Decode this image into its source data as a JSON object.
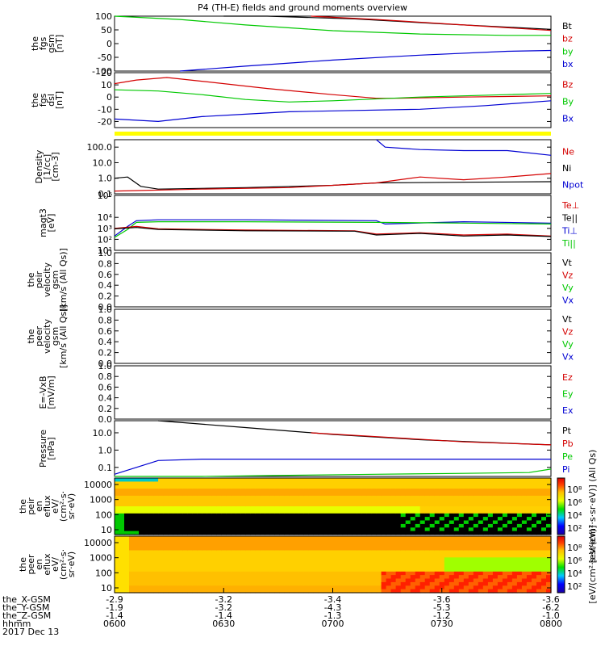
{
  "title": "P4 (TH-E) fields and ground moments overview",
  "colors": {
    "black": "#000000",
    "red": "#d40000",
    "green": "#00c800",
    "blue": "#0000d2",
    "yellow": "#ffff00"
  },
  "chart_data": [
    {
      "type": "line",
      "id": "fgs_gsm",
      "ylabel": [
        "the",
        "fgs",
        "gsm",
        "[nT]"
      ],
      "ylim": [
        -100,
        100
      ],
      "yticks": [
        100,
        50,
        0,
        -50,
        -100
      ],
      "legend": [
        {
          "name": "Bt",
          "color": "black"
        },
        {
          "name": "bz",
          "color": "red"
        },
        {
          "name": "by",
          "color": "green"
        },
        {
          "name": "bx",
          "color": "blue"
        }
      ],
      "series": [
        {
          "name": "Bt",
          "color": "black",
          "x": [
            0.25,
            0.35,
            0.55,
            0.75,
            1.0
          ],
          "y": [
            100,
            100,
            90,
            72,
            52
          ]
        },
        {
          "name": "bz",
          "color": "red",
          "x": [
            0.45,
            0.6,
            0.8,
            1.0
          ],
          "y": [
            100,
            88,
            68,
            48
          ]
        },
        {
          "name": "by",
          "color": "green",
          "x": [
            0,
            0.15,
            0.3,
            0.5,
            0.7,
            0.9,
            1.0
          ],
          "y": [
            100,
            88,
            68,
            47,
            35,
            30,
            30
          ]
        },
        {
          "name": "bx",
          "color": "blue",
          "x": [
            0.15,
            0.3,
            0.5,
            0.7,
            0.9,
            1.0
          ],
          "y": [
            -100,
            -82,
            -60,
            -42,
            -28,
            -25
          ]
        }
      ]
    },
    {
      "type": "line",
      "id": "fgs_dsl",
      "ylabel": [
        "the",
        "fgs",
        "dsl",
        "[nT]"
      ],
      "ylim": [
        -25,
        20
      ],
      "yticks": [
        20,
        10,
        0,
        -10,
        -20
      ],
      "legend": [
        {
          "name": "Bz",
          "color": "red"
        },
        {
          "name": "By",
          "color": "green"
        },
        {
          "name": "Bx",
          "color": "blue"
        }
      ],
      "series": [
        {
          "name": "Bz",
          "color": "red",
          "x": [
            0,
            0.05,
            0.12,
            0.2,
            0.35,
            0.5,
            0.6,
            0.65,
            0.8,
            1.0
          ],
          "y": [
            11,
            14,
            16,
            13,
            7,
            2,
            -1,
            -1,
            0,
            1
          ]
        },
        {
          "name": "By",
          "color": "green",
          "x": [
            0,
            0.1,
            0.2,
            0.3,
            0.4,
            0.5,
            0.7,
            0.9,
            1.0
          ],
          "y": [
            6,
            5,
            2,
            -2,
            -4,
            -3,
            0,
            2,
            3
          ]
        },
        {
          "name": "Bx",
          "color": "blue",
          "x": [
            0,
            0.1,
            0.2,
            0.3,
            0.4,
            0.55,
            0.7,
            0.85,
            1.0
          ],
          "y": [
            -18,
            -20,
            -16,
            -14,
            -12,
            -11,
            -10,
            -7,
            -3
          ]
        }
      ]
    },
    {
      "type": "line",
      "id": "density",
      "ylog": true,
      "ylabel": [
        "Density",
        "[1/cc]",
        "[cm-3]"
      ],
      "ylim": [
        0.1,
        300
      ],
      "yticks": [
        {
          "v": 100,
          "t": "100.0"
        },
        {
          "v": 10,
          "t": "10.0"
        },
        {
          "v": 1,
          "t": "1.0"
        },
        {
          "v": 0.1,
          "t": "0.1"
        }
      ],
      "legend": [
        {
          "name": "Ne",
          "color": "red"
        },
        {
          "name": "Ni",
          "color": "black"
        },
        {
          "name": "Npot",
          "color": "blue"
        }
      ],
      "series": [
        {
          "name": "Ni",
          "color": "black",
          "x": [
            0,
            0.03,
            0.06,
            0.1,
            0.3,
            0.5,
            0.6,
            0.8,
            1.0
          ],
          "y": [
            1.0,
            1.2,
            0.3,
            0.2,
            0.25,
            0.35,
            0.5,
            0.55,
            0.6
          ]
        },
        {
          "name": "Ne",
          "color": "red",
          "x": [
            0,
            0.2,
            0.4,
            0.5,
            0.6,
            0.7,
            0.8,
            0.9,
            1.0
          ],
          "y": [
            0.15,
            0.2,
            0.25,
            0.35,
            0.5,
            1.2,
            0.8,
            1.2,
            2.0
          ]
        },
        {
          "name": "Npot",
          "color": "blue",
          "x": [
            0.6,
            0.62,
            0.7,
            0.8,
            0.9,
            1.0
          ],
          "y": [
            300,
            100,
            70,
            60,
            60,
            30
          ]
        }
      ]
    },
    {
      "type": "line",
      "id": "temperature",
      "ylog": true,
      "ylabel": [
        "magt3",
        "[eV]"
      ],
      "ylim": [
        10,
        1000000
      ],
      "yticks": [
        {
          "v": 1000000,
          "t": "10⁶"
        },
        {
          "v": 10000,
          "t": "10⁴"
        },
        {
          "v": 1000,
          "t": "10³"
        },
        {
          "v": 100,
          "t": "10²"
        },
        {
          "v": 10,
          "t": "10¹"
        }
      ],
      "legend": [
        {
          "name": "Te⊥",
          "color": "red"
        },
        {
          "name": "Te||",
          "color": "black"
        },
        {
          "name": "Ti⊥",
          "color": "blue"
        },
        {
          "name": "Ti||",
          "color": "green"
        }
      ],
      "series": [
        {
          "name": "Ti⊥",
          "color": "blue",
          "x": [
            0,
            0.03,
            0.05,
            0.1,
            0.3,
            0.6,
            0.62,
            0.8,
            1.0
          ],
          "y": [
            200,
            1500,
            5000,
            6000,
            6000,
            5000,
            2500,
            4000,
            3000
          ]
        },
        {
          "name": "Ti||",
          "color": "green",
          "x": [
            0,
            0.03,
            0.05,
            0.1,
            0.3,
            0.6,
            0.8,
            1.0
          ],
          "y": [
            150,
            800,
            3500,
            4000,
            4000,
            3500,
            3000,
            2500
          ]
        },
        {
          "name": "Te⊥",
          "color": "red",
          "x": [
            0,
            0.05,
            0.1,
            0.3,
            0.55,
            0.6,
            0.7,
            0.8,
            0.9,
            1.0
          ],
          "y": [
            1000,
            1500,
            900,
            700,
            600,
            300,
            400,
            250,
            300,
            200
          ]
        },
        {
          "name": "Te||",
          "color": "black",
          "x": [
            0,
            0.05,
            0.1,
            0.3,
            0.55,
            0.6,
            0.7,
            0.8,
            0.9,
            1.0
          ],
          "y": [
            900,
            1200,
            800,
            600,
            550,
            250,
            350,
            200,
            250,
            180
          ]
        }
      ]
    },
    {
      "type": "line",
      "id": "peir_velocity",
      "ylabel": [
        "the",
        "peir",
        "velocity",
        "gsm",
        "[km/s (All Qs)]"
      ],
      "ylim": [
        0,
        1
      ],
      "yticks": [
        "1.0",
        "0.8",
        "0.6",
        "0.4",
        "0.2",
        "0.0"
      ],
      "legend": [
        {
          "name": "Vt",
          "color": "black"
        },
        {
          "name": "Vz",
          "color": "red"
        },
        {
          "name": "Vy",
          "color": "green"
        },
        {
          "name": "Vx",
          "color": "blue"
        }
      ],
      "series": []
    },
    {
      "type": "line",
      "id": "peer_velocity",
      "ylabel": [
        "the",
        "peer",
        "velocity",
        "gsm",
        "[km/s (All Qs)]"
      ],
      "ylim": [
        0,
        1
      ],
      "yticks": [
        "1.0",
        "0.8",
        "0.6",
        "0.4",
        "0.2",
        "0.0"
      ],
      "legend": [
        {
          "name": "Vt",
          "color": "black"
        },
        {
          "name": "Vz",
          "color": "red"
        },
        {
          "name": "Vy",
          "color": "green"
        },
        {
          "name": "Vx",
          "color": "blue"
        }
      ],
      "series": []
    },
    {
      "type": "line",
      "id": "efield",
      "ylabel": [
        "E=-VxB",
        "[mV/m]"
      ],
      "ylim": [
        0,
        1
      ],
      "yticks": [
        "1.0",
        "0.8",
        "0.6",
        "0.4",
        "0.2",
        "0.0"
      ],
      "legend": [
        {
          "name": "Ez",
          "color": "red"
        },
        {
          "name": "Ey",
          "color": "green"
        },
        {
          "name": "Ex",
          "color": "blue"
        }
      ],
      "series": []
    },
    {
      "type": "line",
      "id": "pressure",
      "ylog": true,
      "ylabel": [
        "Pressure",
        "[nPa]"
      ],
      "ylim": [
        0.03,
        50
      ],
      "yticks": [
        {
          "v": 10,
          "t": "10.0"
        },
        {
          "v": 1,
          "t": "1.0"
        },
        {
          "v": 0.1,
          "t": "0.1"
        }
      ],
      "legend": [
        {
          "name": "Pt",
          "color": "black"
        },
        {
          "name": "Pb",
          "color": "red"
        },
        {
          "name": "Pe",
          "color": "green"
        },
        {
          "name": "Pi",
          "color": "blue"
        }
      ],
      "series": [
        {
          "name": "Pt",
          "color": "black",
          "x": [
            0.1,
            0.3,
            0.5,
            0.7,
            0.9,
            1.0
          ],
          "y": [
            50,
            20,
            8,
            4,
            2.5,
            2
          ]
        },
        {
          "name": "Pb",
          "color": "red",
          "x": [
            0.45,
            0.6,
            0.8,
            1.0
          ],
          "y": [
            10,
            6,
            3,
            2
          ]
        },
        {
          "name": "Pi",
          "color": "blue",
          "x": [
            0,
            0.05,
            0.1,
            0.2,
            0.4,
            0.6,
            0.8,
            1.0
          ],
          "y": [
            0.04,
            0.1,
            0.25,
            0.3,
            0.3,
            0.3,
            0.3,
            0.3
          ]
        },
        {
          "name": "Pe",
          "color": "green",
          "x": [
            0,
            0.2,
            0.4,
            0.6,
            0.8,
            0.95,
            1.0
          ],
          "y": [
            0.03,
            0.03,
            0.035,
            0.04,
            0.045,
            0.05,
            0.08
          ]
        }
      ]
    },
    {
      "type": "heatmap",
      "id": "peir_eflux",
      "ylabel": [
        "the",
        "peir",
        "en",
        "eflux",
        "eV/",
        "(cm²·s·",
        "sr·eV)"
      ],
      "ylog": true,
      "ylim": [
        6,
        20000
      ],
      "yticks": [
        "10000",
        "1000",
        "100",
        "10"
      ],
      "colorbar": {
        "ticks": [
          "10⁸",
          "10⁶",
          "10⁴",
          "10²"
        ],
        "label": "[eV/(cm²·s·sr·eV)] (All Qs)"
      }
    },
    {
      "type": "heatmap",
      "id": "peer_eflux",
      "ylabel": [
        "the",
        "peer",
        "en",
        "eflux",
        "eV/",
        "(cm²·s·",
        "sr·eV)"
      ],
      "ylog": true,
      "ylim": [
        6,
        20000
      ],
      "yticks": [
        "10000",
        "1000",
        "100",
        "10"
      ],
      "colorbar": {
        "ticks": [
          "10⁸",
          "10⁶",
          "10⁴",
          "10²"
        ],
        "label": "[eV/(cm²·s·sr·eV)]"
      }
    }
  ],
  "xaxis": {
    "rows": [
      {
        "label": "the_X-GSM",
        "values": [
          "-2.9",
          "-3.2",
          "-3.4",
          "-3.6",
          "-3.6"
        ]
      },
      {
        "label": "the_Y-GSM",
        "values": [
          "-1.9",
          "-3.2",
          "-4.3",
          "-5.3",
          "-6.2"
        ]
      },
      {
        "label": "the_Z-GSM",
        "values": [
          "-1.4",
          "-1.4",
          "-1.3",
          "-1.2",
          "-1.0"
        ]
      },
      {
        "label": "hhmm",
        "values": [
          "0600",
          "0630",
          "0700",
          "0730",
          "0800"
        ]
      }
    ],
    "date": "2017 Dec 13"
  }
}
